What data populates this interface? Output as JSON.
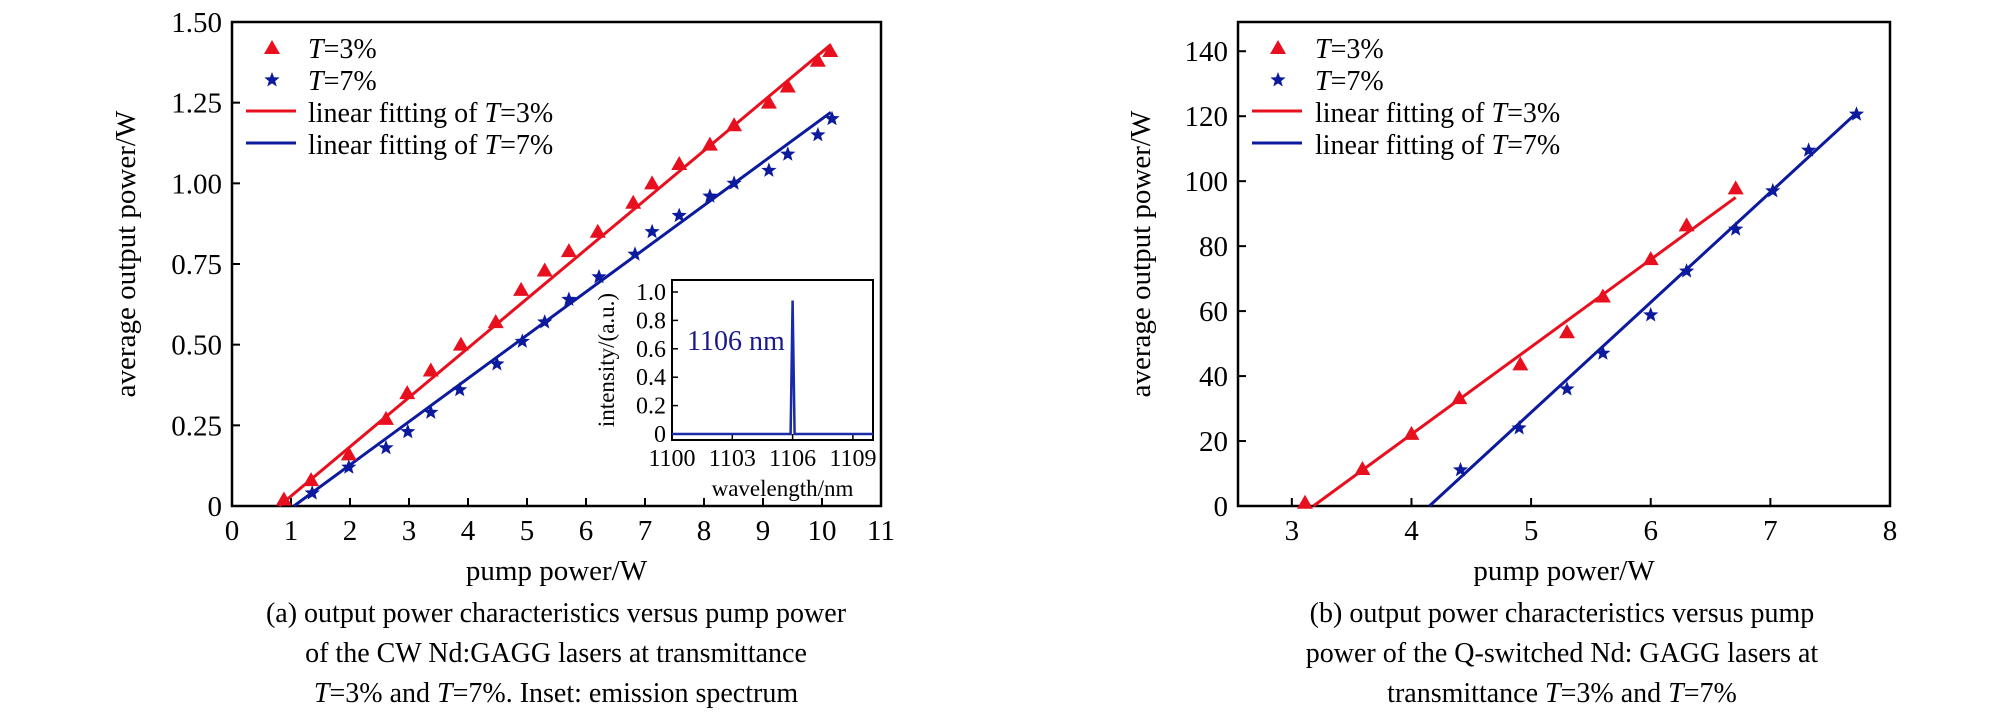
{
  "figure": {
    "panel_a": {
      "caption_lines": [
        [
          {
            "t": "(a) output power characteristics versus pump power",
            "i": false
          }
        ],
        [
          {
            "t": "of the CW Nd:GAGG lasers at transmittance",
            "i": false
          }
        ],
        [
          {
            "t": "T",
            "i": true
          },
          {
            "t": "=3% and ",
            "i": false
          },
          {
            "t": "T",
            "i": true
          },
          {
            "t": "=7%. Inset: emission spectrum",
            "i": false
          }
        ]
      ]
    },
    "panel_b": {
      "caption_lines": [
        [
          {
            "t": "(b) output power characteristics versus pump",
            "i": false
          }
        ],
        [
          {
            "t": "power of the Q-switched Nd: GAGG lasers at",
            "i": false
          }
        ],
        [
          {
            "t": "transmittance ",
            "i": false
          },
          {
            "t": "T",
            "i": true
          },
          {
            "t": "=3% and ",
            "i": false
          },
          {
            "t": "T",
            "i": true
          },
          {
            "t": "=7%",
            "i": false
          }
        ]
      ]
    },
    "colors": {
      "t3": "#e8101e",
      "t7": "#0c1a9e",
      "inset_line": "#1a2aa8",
      "peak_label": "#1a1a8c"
    }
  },
  "chart_data": [
    {
      "id": "a",
      "type": "scatter",
      "title": "",
      "xlabel": "pump power/W",
      "ylabel": "average output power/W",
      "xlim": [
        0,
        11
      ],
      "ylim": [
        0,
        1.5
      ],
      "xticks": [
        0,
        1,
        2,
        3,
        4,
        5,
        6,
        7,
        8,
        9,
        10,
        11
      ],
      "xtick_labels": [
        "0",
        "1",
        "2",
        "3",
        "4",
        "5",
        "6",
        "7",
        "8",
        "9",
        "10",
        "11"
      ],
      "yticks": [
        0,
        0.25,
        0.5,
        0.75,
        1.0,
        1.25,
        1.5
      ],
      "ytick_labels": [
        "0",
        "0.25",
        "0.50",
        "0.75",
        "1.00",
        "1.25",
        "1.50"
      ],
      "grid": false,
      "legend_position": "top-left",
      "legend": [
        {
          "marker": "triangle",
          "series": "T3",
          "parts": [
            {
              "t": "T",
              "i": true
            },
            {
              "t": "=3%",
              "i": false
            }
          ]
        },
        {
          "marker": "star",
          "series": "T7",
          "parts": [
            {
              "t": "T",
              "i": true
            },
            {
              "t": "=7%",
              "i": false
            }
          ]
        },
        {
          "marker": "line",
          "series": "T3",
          "parts": [
            {
              "t": "linear fitting of ",
              "i": false
            },
            {
              "t": "T",
              "i": true
            },
            {
              "t": "=3%",
              "i": false
            }
          ]
        },
        {
          "marker": "line",
          "series": "T7",
          "parts": [
            {
              "t": "linear fitting of ",
              "i": false
            },
            {
              "t": "T",
              "i": true
            },
            {
              "t": "=7%",
              "i": false
            }
          ]
        }
      ],
      "series": [
        {
          "name": "T=3%",
          "key": "T3",
          "marker": "triangle",
          "x": [
            0.88,
            1.34,
            1.98,
            2.61,
            2.97,
            3.37,
            3.88,
            4.47,
            4.9,
            5.3,
            5.71,
            6.2,
            6.8,
            7.12,
            7.58,
            8.1,
            8.51,
            9.1,
            9.42,
            9.93,
            10.14
          ],
          "y": [
            0.02,
            0.08,
            0.16,
            0.27,
            0.35,
            0.42,
            0.5,
            0.57,
            0.67,
            0.73,
            0.79,
            0.85,
            0.94,
            1.0,
            1.06,
            1.12,
            1.18,
            1.25,
            1.3,
            1.38,
            1.41
          ]
        },
        {
          "name": "T=7%",
          "key": "T7",
          "marker": "star",
          "x": [
            1.36,
            1.98,
            2.61,
            2.98,
            3.37,
            3.86,
            4.49,
            4.92,
            5.3,
            5.71,
            6.22,
            6.83,
            7.12,
            7.58,
            8.1,
            8.51,
            9.1,
            9.42,
            9.93,
            10.17
          ],
          "y": [
            0.04,
            0.12,
            0.18,
            0.23,
            0.29,
            0.36,
            0.44,
            0.51,
            0.57,
            0.64,
            0.71,
            0.78,
            0.85,
            0.9,
            0.96,
            1.0,
            1.04,
            1.09,
            1.15,
            1.2
          ]
        }
      ],
      "fits": [
        {
          "name": "linear fitting of T=3%",
          "key": "T3",
          "x": [
            0.8,
            10.15
          ],
          "y": [
            0.0,
            1.43
          ]
        },
        {
          "name": "linear fitting of T=7%",
          "key": "T7",
          "x": [
            1.05,
            10.15
          ],
          "y": [
            0.0,
            1.22
          ]
        }
      ],
      "inset": {
        "type": "line",
        "xlabel": "wavelength/nm",
        "ylabel": "intensity/(a.u.)",
        "xlim": [
          1100,
          1110
        ],
        "ylim": [
          0,
          1.0
        ],
        "xticks": [
          1100,
          1103,
          1106,
          1109
        ],
        "xtick_labels": [
          "1100",
          "1103",
          "1106",
          "1109"
        ],
        "yticks": [
          0,
          0.2,
          0.4,
          0.6,
          0.8,
          1.0
        ],
        "ytick_labels": [
          "0",
          "0.2",
          "0.4",
          "0.6",
          "0.8",
          "1.0"
        ],
        "annotation": "1106 nm",
        "x": [
          1100,
          1105.9,
          1106.0,
          1106.1,
          1110
        ],
        "y": [
          0.0,
          0.0,
          0.94,
          0.0,
          0.0
        ]
      }
    },
    {
      "id": "b",
      "type": "scatter",
      "title": "",
      "xlabel": "pump power/W",
      "ylabel": "average output power/W",
      "xlim": [
        2.55,
        8
      ],
      "ylim": [
        0,
        149
      ],
      "xticks": [
        3,
        4,
        5,
        6,
        7,
        8
      ],
      "xtick_labels": [
        "3",
        "4",
        "5",
        "6",
        "7",
        "8"
      ],
      "yticks": [
        0,
        20,
        40,
        60,
        80,
        100,
        120,
        140
      ],
      "ytick_labels": [
        "0",
        "20",
        "40",
        "60",
        "80",
        "100",
        "120",
        "140"
      ],
      "grid": false,
      "legend_position": "top-left",
      "legend": [
        {
          "marker": "triangle",
          "series": "T3",
          "parts": [
            {
              "t": "T",
              "i": true
            },
            {
              "t": "=3%",
              "i": false
            }
          ]
        },
        {
          "marker": "star",
          "series": "T7",
          "parts": [
            {
              "t": "T",
              "i": true
            },
            {
              "t": "=7%",
              "i": false
            }
          ]
        },
        {
          "marker": "line",
          "series": "T3",
          "parts": [
            {
              "t": "linear fitting of ",
              "i": false
            },
            {
              "t": "T",
              "i": true
            },
            {
              "t": "=3%",
              "i": false
            }
          ]
        },
        {
          "marker": "line",
          "series": "T7",
          "parts": [
            {
              "t": "linear fitting of ",
              "i": false
            },
            {
              "t": "T",
              "i": true
            },
            {
              "t": "=7%",
              "i": false
            }
          ]
        }
      ],
      "series": [
        {
          "name": "T=3%",
          "key": "T3",
          "marker": "triangle",
          "x": [
            3.11,
            3.59,
            4.0,
            4.4,
            4.91,
            5.3,
            5.6,
            6.0,
            6.3,
            6.71
          ],
          "y": [
            1,
            11.4,
            22.2,
            33.2,
            43.6,
            53.5,
            64.5,
            76,
            86.4,
            97.8
          ]
        },
        {
          "name": "T=7%",
          "key": "T7",
          "marker": "star",
          "x": [
            4.41,
            4.9,
            5.3,
            5.6,
            6.0,
            6.3,
            6.71,
            7.02,
            7.32,
            7.72
          ],
          "y": [
            11.1,
            24,
            36,
            47,
            58.8,
            72.3,
            85.2,
            97,
            109.5,
            120.6
          ]
        }
      ],
      "fits": [
        {
          "name": "linear fitting of T=3%",
          "key": "T3",
          "x": [
            3.18,
            6.71
          ],
          "y": [
            0,
            95
          ]
        },
        {
          "name": "linear fitting of T=7%",
          "key": "T7",
          "x": [
            4.15,
            7.72
          ],
          "y": [
            0,
            121
          ]
        }
      ]
    }
  ]
}
